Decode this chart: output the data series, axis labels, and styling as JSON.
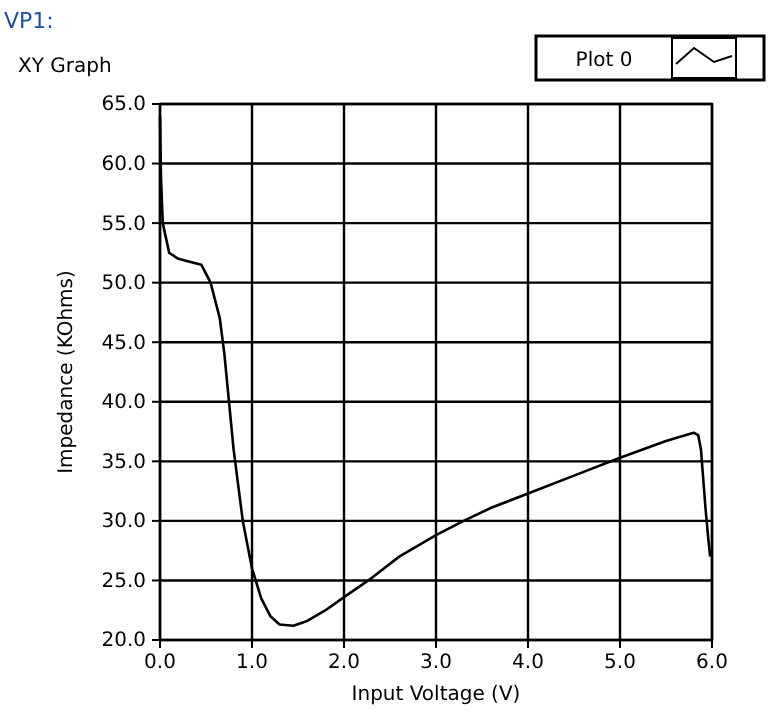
{
  "chart_data": {
    "type": "line",
    "title": "VP1:",
    "subtitle": "XY Graph",
    "xlabel": "Input Voltage (V)",
    "ylabel": "Impedance (KOhms)",
    "legend": "top right",
    "grid": true,
    "line_style": "solid",
    "marker": "none",
    "xlim": [
      0,
      6
    ],
    "ylim": [
      20,
      65
    ],
    "xticks": [
      {
        "value": 0,
        "label": "0.0"
      },
      {
        "value": 1,
        "label": "1.0"
      },
      {
        "value": 2,
        "label": "2.0"
      },
      {
        "value": 3,
        "label": "3.0"
      },
      {
        "value": 4,
        "label": "4.0"
      },
      {
        "value": 5,
        "label": "5.0"
      },
      {
        "value": 6,
        "label": "6.0"
      }
    ],
    "yticks": [
      {
        "value": 20,
        "label": "20.0"
      },
      {
        "value": 25,
        "label": "25.0"
      },
      {
        "value": 30,
        "label": "30.0"
      },
      {
        "value": 35,
        "label": "35.0"
      },
      {
        "value": 40,
        "label": "40.0"
      },
      {
        "value": 45,
        "label": "45.0"
      },
      {
        "value": 50,
        "label": "50.0"
      },
      {
        "value": 55,
        "label": "55.0"
      },
      {
        "value": 60,
        "label": "60.0"
      },
      {
        "value": 65,
        "label": "65.0"
      }
    ],
    "series": [
      {
        "name": "Plot 0",
        "color": "#000000",
        "x": [
          0,
          0.01,
          0.03,
          0.1,
          0.2,
          0.3,
          0.45,
          0.55,
          0.65,
          0.7,
          0.75,
          0.8,
          0.9,
          1.0,
          1.1,
          1.2,
          1.3,
          1.45,
          1.6,
          1.8,
          2.0,
          2.3,
          2.6,
          3.0,
          3.3,
          3.6,
          4.0,
          4.5,
          5.0,
          5.5,
          5.8,
          5.85,
          5.88,
          5.9,
          5.93,
          5.96,
          5.98
        ],
        "values": [
          64,
          59,
          55,
          52.5,
          52,
          51.8,
          51.5,
          50,
          47,
          44,
          40,
          36,
          30,
          26,
          23.5,
          22,
          21.3,
          21.2,
          21.6,
          22.5,
          23.6,
          25.2,
          27,
          28.8,
          30,
          31.1,
          32.3,
          33.8,
          35.3,
          36.7,
          37.4,
          37.2,
          36,
          34,
          31,
          28.5,
          27
        ]
      }
    ]
  }
}
